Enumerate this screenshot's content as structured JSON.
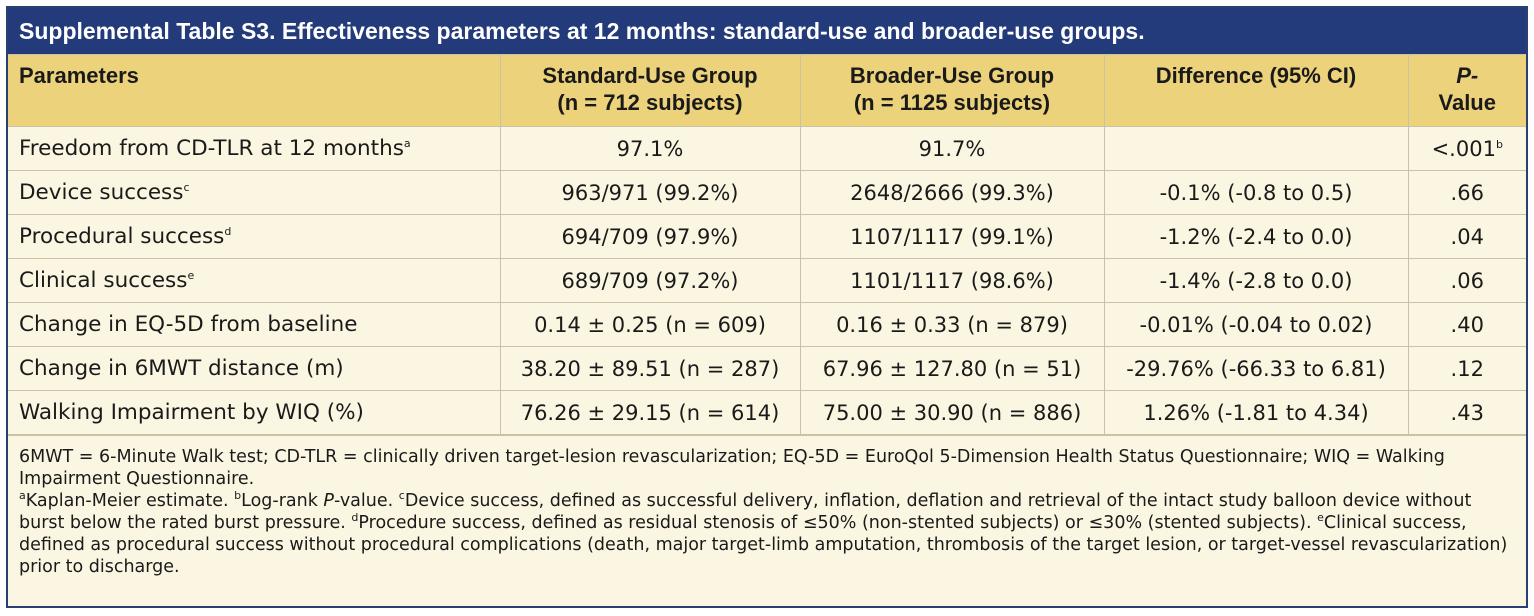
{
  "title": "Supplemental Table S3. Effectiveness parameters at 12 months: standard-use and broader-use groups.",
  "headers": {
    "parameters": "Parameters",
    "standard_line1": "Standard-Use Group",
    "standard_line2": "(n = 712 subjects)",
    "broader_line1": "Broader-Use Group",
    "broader_line2": "(n = 1125 subjects)",
    "difference": "Difference (95% CI)",
    "pvalue_line1": "P-",
    "pvalue_line2": "Value"
  },
  "rows": [
    {
      "param": "Freedom from CD-TLR at 12 months",
      "param_sup": "a",
      "standard": "97.1%",
      "broader": "91.7%",
      "difference": "",
      "pvalue": "<.001",
      "pvalue_sup": "b"
    },
    {
      "param": "Device success",
      "param_sup": "c",
      "standard": "963/971 (99.2%)",
      "broader": "2648/2666 (99.3%)",
      "difference": "-0.1% (-0.8 to 0.5)",
      "pvalue": ".66",
      "pvalue_sup": ""
    },
    {
      "param": "Procedural success",
      "param_sup": "d",
      "standard": "694/709 (97.9%)",
      "broader": "1107/1117 (99.1%)",
      "difference": "-1.2% (-2.4 to 0.0)",
      "pvalue": ".04",
      "pvalue_sup": ""
    },
    {
      "param": "Clinical success",
      "param_sup": "e",
      "standard": "689/709 (97.2%)",
      "broader": "1101/1117 (98.6%)",
      "difference": "-1.4% (-2.8 to 0.0)",
      "pvalue": ".06",
      "pvalue_sup": ""
    },
    {
      "param": "Change in EQ-5D from baseline",
      "param_sup": "",
      "standard": "0.14 ± 0.25 (n = 609)",
      "broader": "0.16 ± 0.33 (n = 879)",
      "difference": "-0.01% (-0.04 to 0.02)",
      "pvalue": ".40",
      "pvalue_sup": ""
    },
    {
      "param": "Change in 6MWT distance (m)",
      "param_sup": "",
      "standard": "38.20 ± 89.51 (n = 287)",
      "broader": "67.96 ± 127.80 (n = 51)",
      "difference": "-29.76% (-66.33 to 6.81)",
      "pvalue": ".12",
      "pvalue_sup": ""
    },
    {
      "param": "Walking Impairment by WIQ (%)",
      "param_sup": "",
      "standard": "76.26 ± 29.15 (n = 614)",
      "broader": "75.00 ± 30.90 (n = 886)",
      "difference": "1.26% (-1.81 to 4.34)",
      "pvalue": ".43",
      "pvalue_sup": ""
    }
  ],
  "footnotes": {
    "abbreviations": "6MWT = 6-Minute Walk test; CD-TLR = clinically driven target-lesion revascularization; EQ-5D = EuroQol 5-Dimension Health Status Questionnaire; WIQ = Walking Impairment Questionnaire.",
    "a_mark": "a",
    "a_text": "Kaplan-Meier estimate. ",
    "b_mark": "b",
    "b_text_1": "Log-rank ",
    "b_text_italic": "P",
    "b_text_2": "-value. ",
    "c_mark": "c",
    "c_text": "Device success, defined as successful delivery, inflation, deflation and retrieval of the intact study balloon device without burst below the rated burst pressure. ",
    "d_mark": "d",
    "d_text": "Procedure success, defined as residual stenosis of ≤50% (non-stented subjects) or ≤30% (stented subjects). ",
    "e_mark": "e",
    "e_text": "Clinical success, defined as procedural success without procedural complications (death, major target-limb amputation, thrombosis of the target lesion, or target-vessel revascularization) prior to discharge."
  }
}
